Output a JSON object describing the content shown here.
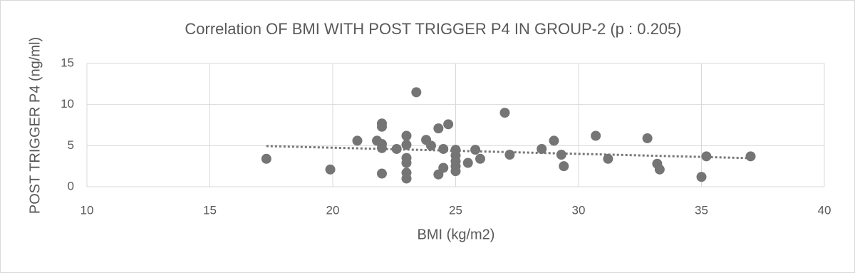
{
  "chart_data": {
    "type": "scatter",
    "title": "Correlation OF BMI WITH POST TRIGGER P4 IN GROUP-2 (p : 0.205)",
    "x_label": "BMI (kg/m2)",
    "y_label": "POST TRIGGER P4 (ng/ml)",
    "x": [
      17.3,
      19.9,
      21.0,
      21.8,
      22.0,
      22.0,
      22.0,
      22.0,
      22.0,
      22.6,
      23.0,
      23.0,
      23.0,
      23.0,
      23.0,
      23.0,
      23.4,
      23.8,
      24.0,
      24.3,
      24.3,
      24.5,
      24.5,
      24.7,
      25.0,
      25.0,
      25.0,
      25.0,
      25.0,
      25.5,
      25.8,
      26.0,
      27.0,
      27.2,
      28.5,
      29.0,
      29.3,
      29.4,
      30.7,
      31.2,
      32.8,
      33.2,
      33.3,
      35.0,
      35.2,
      37.0
    ],
    "values": [
      3.4,
      2.1,
      5.6,
      5.6,
      7.7,
      7.3,
      5.2,
      4.7,
      1.6,
      4.6,
      6.2,
      5.1,
      3.5,
      2.9,
      1.7,
      1.0,
      11.5,
      5.7,
      5.0,
      7.1,
      1.5,
      4.6,
      2.3,
      7.6,
      4.5,
      3.8,
      3.1,
      2.5,
      1.9,
      2.9,
      4.5,
      3.4,
      9.0,
      3.9,
      4.6,
      5.6,
      3.9,
      2.5,
      6.2,
      3.4,
      5.9,
      2.8,
      2.1,
      1.2,
      3.7,
      3.7
    ],
    "color": "#757575",
    "trendline": "linear",
    "trendline_color": "#767676",
    "xlim": [
      10,
      40
    ],
    "xticks": [
      10,
      15,
      20,
      25,
      30,
      35,
      40
    ],
    "ylim": [
      0,
      15
    ],
    "yticks": [
      0,
      5,
      10,
      15
    ],
    "grid": true
  }
}
